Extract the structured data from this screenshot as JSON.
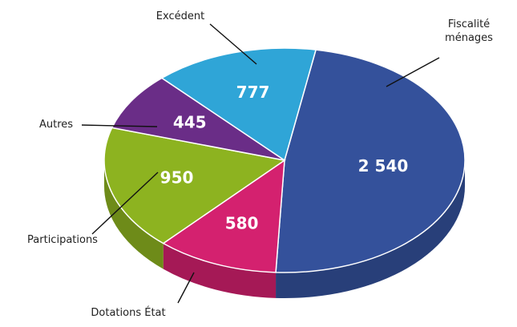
{
  "chart_data": {
    "type": "pie",
    "categories": [
      "Fiscalité ménages",
      "Dotations État",
      "Participations",
      "Autres",
      "Excédent"
    ],
    "values": [
      2540,
      580,
      950,
      445,
      777
    ],
    "value_labels": [
      "2 540",
      "580",
      "950",
      "445",
      "777"
    ],
    "colors": [
      "#34519b",
      "#d4216f",
      "#8db320",
      "#6a2d87",
      "#2fa5d7"
    ]
  }
}
